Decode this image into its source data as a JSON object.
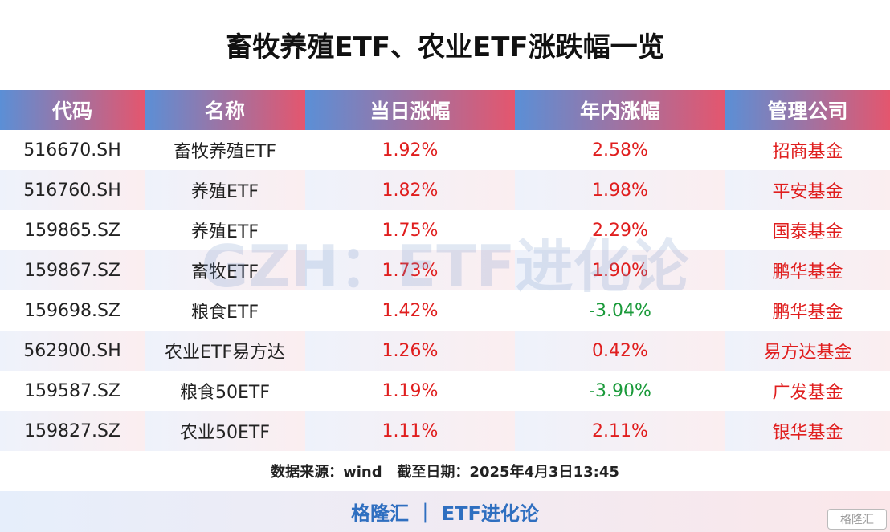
{
  "header": {
    "title": "畜牧养殖ETF、农业ETF涨跌幅一览"
  },
  "table": {
    "columns": [
      "代码",
      "名称",
      "当日涨幅",
      "年内涨幅",
      "管理公司"
    ],
    "rows": [
      [
        "516670.SH",
        "畜牧养殖ETF",
        "1.92%",
        "2.58%",
        "招商基金"
      ],
      [
        "516760.SH",
        "养殖ETF",
        "1.82%",
        "1.98%",
        "平安基金"
      ],
      [
        "159865.SZ",
        "养殖ETF",
        "1.75%",
        "2.29%",
        "国泰基金"
      ],
      [
        "159867.SZ",
        "畜牧ETF",
        "1.73%",
        "1.90%",
        "鹏华基金"
      ],
      [
        "159698.SZ",
        "粮食ETF",
        "1.42%",
        "-3.04%",
        "鹏华基金"
      ],
      [
        "562900.SH",
        "农业ETF易方达",
        "1.26%",
        "0.42%",
        "易方达基金"
      ],
      [
        "159587.SZ",
        "粮食50ETF",
        "1.19%",
        "-3.90%",
        "广发基金"
      ],
      [
        "159827.SZ",
        "农业50ETF",
        "1.11%",
        "2.11%",
        "银华基金"
      ]
    ]
  },
  "source": "数据来源：wind   截至日期：2025年4月3日13:45",
  "footer": "格隆汇 ｜ ETF进化论",
  "watermark": "GZH：ETF进化论",
  "logo": "格隆汇"
}
